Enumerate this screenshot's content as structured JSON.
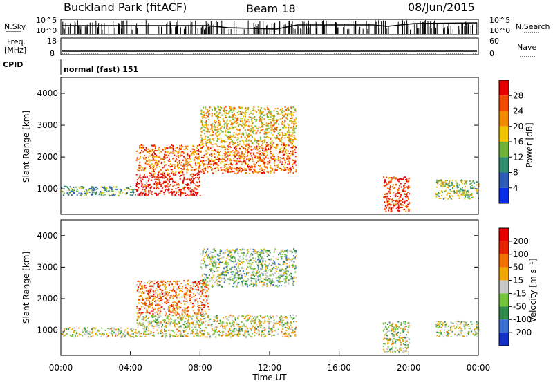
{
  "header": {
    "station": "Buckland Park (fitACF)",
    "beam": "Beam 18",
    "date": "08/Jun/2015"
  },
  "strip_labels": {
    "nsky": "N.Sky",
    "nsky_ticks": [
      "10^5",
      "10^0"
    ],
    "nsearch": "N.Search",
    "nsearch_ticks": [
      "10^5",
      "10^0"
    ],
    "freq": "Freq.",
    "freq_unit": "[MHz]",
    "freq_ticks": [
      "18",
      "8"
    ],
    "nave": "Nave",
    "nave_ticks": [
      "60",
      "0"
    ],
    "cpid": "CPID",
    "cpid_value": "normal (fast) 151"
  },
  "chart_data": [
    {
      "type": "heatmap",
      "panel": "power",
      "ylabel": "Slant Range [km]",
      "xlabel": "",
      "y_ticks": [
        "1000",
        "2000",
        "3000",
        "4000"
      ],
      "ylim": [
        200,
        4500
      ],
      "xlim_hours": [
        0,
        24
      ],
      "colorbar": {
        "label": "Power [dB]",
        "ticks": [
          "4",
          "8",
          "12",
          "16",
          "20",
          "24",
          "28"
        ],
        "colors": [
          "#0a2ee8",
          "#2d5ab5",
          "#2f8e6e",
          "#6fb33a",
          "#f2c400",
          "#f28a00",
          "#ef4a00",
          "#e80000"
        ]
      },
      "regions": [
        {
          "t0": 0.0,
          "t1": 4.3,
          "r0": 800,
          "r1": 1100,
          "level": 0.35
        },
        {
          "t0": 4.3,
          "t1": 8.0,
          "r0": 800,
          "r1": 1500,
          "level": 0.95
        },
        {
          "t0": 4.3,
          "t1": 13.5,
          "r0": 1500,
          "r1": 2400,
          "level": 0.75
        },
        {
          "t0": 8.0,
          "t1": 13.5,
          "r0": 2400,
          "r1": 3600,
          "level": 0.6
        },
        {
          "t0": 18.5,
          "t1": 20.0,
          "r0": 300,
          "r1": 1400,
          "level": 0.85
        },
        {
          "t0": 21.5,
          "t1": 24.0,
          "r0": 700,
          "r1": 1300,
          "level": 0.45
        }
      ]
    },
    {
      "type": "heatmap",
      "panel": "velocity",
      "ylabel": "Slant Range [km]",
      "xlabel": "Time UT",
      "y_ticks": [
        "1000",
        "2000",
        "3000",
        "4000"
      ],
      "ylim": [
        200,
        4500
      ],
      "x_ticks": [
        "00:00",
        "04:00",
        "08:00",
        "12:00",
        "16:00",
        "20:00",
        "00:00"
      ],
      "xlim_hours": [
        0,
        24
      ],
      "colorbar": {
        "label": "Velocity [m s⁻¹]",
        "ticks": [
          "200",
          "100",
          "50",
          "15",
          "-15",
          "-50",
          "-100",
          "-200"
        ],
        "colors": [
          "#1431c8",
          "#3a6fd0",
          "#2e8a4a",
          "#73c43b",
          "#c8c8c8",
          "#f2a800",
          "#f07000",
          "#e82400",
          "#e80000"
        ]
      },
      "regions": [
        {
          "t0": 0.0,
          "t1": 4.3,
          "r0": 800,
          "r1": 1100,
          "level": 0.5
        },
        {
          "t0": 4.3,
          "t1": 13.5,
          "r0": 800,
          "r1": 1500,
          "level": 0.5
        },
        {
          "t0": 4.3,
          "t1": 8.5,
          "r0": 1500,
          "r1": 2600,
          "level": 0.7
        },
        {
          "t0": 8.0,
          "t1": 13.5,
          "r0": 2400,
          "r1": 3600,
          "level": 0.4
        },
        {
          "t0": 18.5,
          "t1": 20.0,
          "r0": 300,
          "r1": 1300,
          "level": 0.5
        },
        {
          "t0": 21.5,
          "t1": 24.0,
          "r0": 800,
          "r1": 1300,
          "level": 0.45
        }
      ]
    }
  ]
}
